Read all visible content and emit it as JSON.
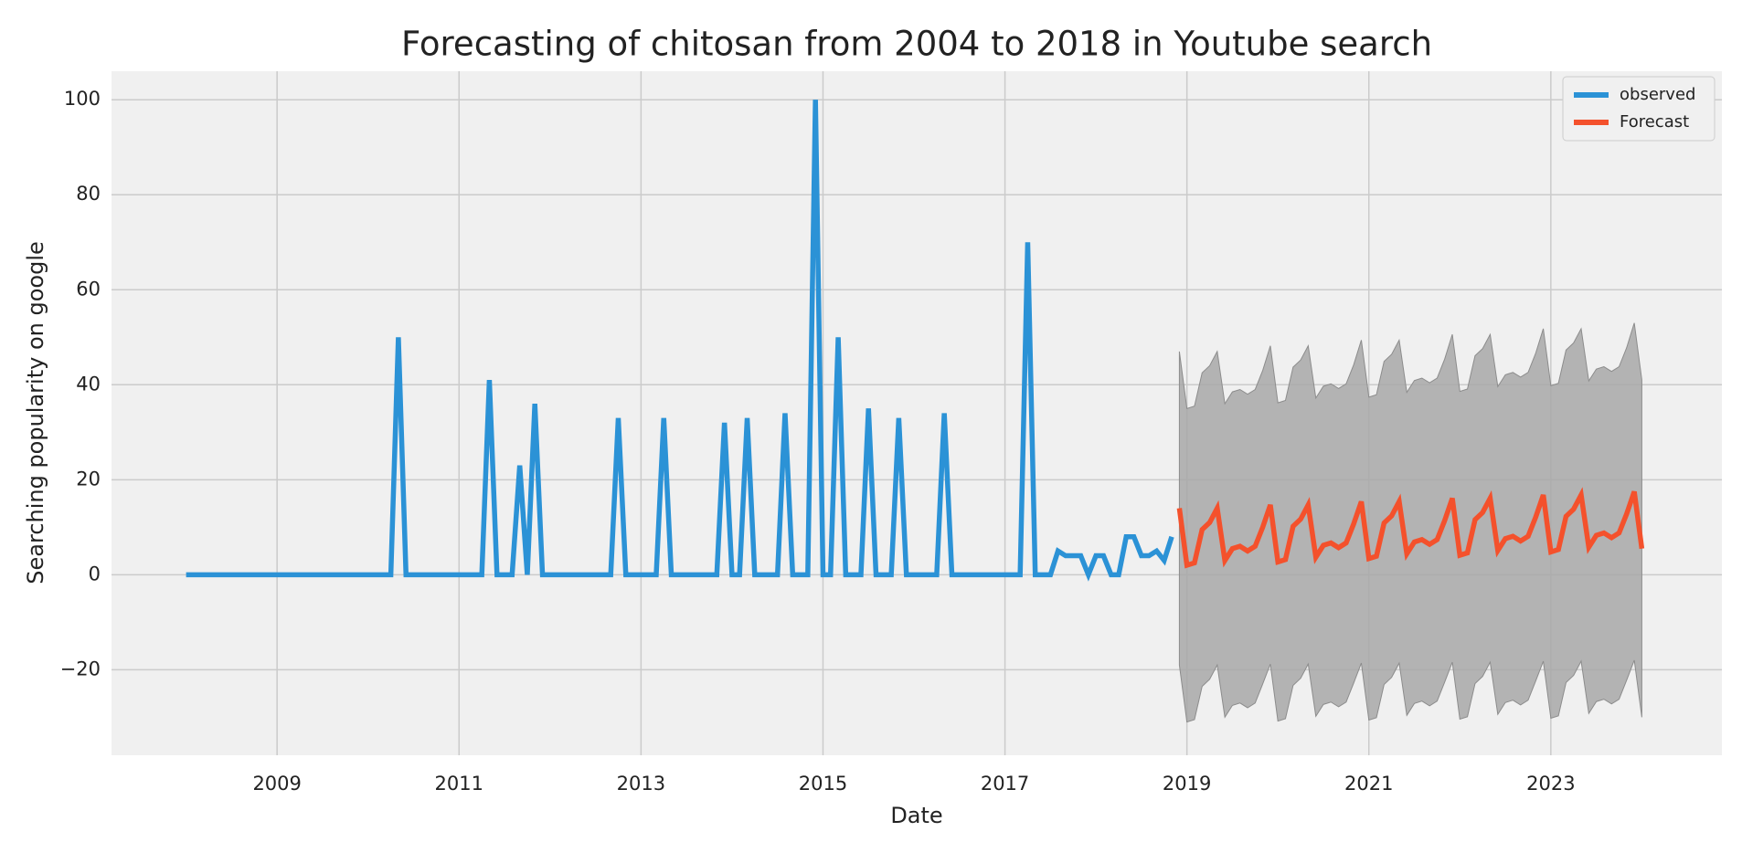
{
  "chart_data": {
    "type": "line",
    "title": "Forecasting of chitosan from 2004 to 2018 in Youtube search",
    "x_label": "Date",
    "y_label": "Searching popularity on google",
    "xlim": [
      2007.18,
      2024.88
    ],
    "ylim": [
      -38,
      106
    ],
    "xticks": [
      2009,
      2011,
      2013,
      2015,
      2017,
      2019,
      2021,
      2023
    ],
    "yticks": [
      {
        "value": -20,
        "label": "−20"
      },
      0,
      20,
      40,
      60,
      80,
      100
    ],
    "grid": true,
    "legend": "upper right",
    "series": [
      {
        "name": "observed",
        "color": "#2b92d6",
        "x": [
          2008.0,
          2010.25,
          2010.333,
          2010.417,
          2011.25,
          2011.333,
          2011.417,
          2011.583,
          2011.667,
          2011.75,
          2011.833,
          2011.917,
          2012.667,
          2012.75,
          2012.833,
          2013.167,
          2013.25,
          2013.333,
          2013.833,
          2013.917,
          2014.0,
          2014.083,
          2014.167,
          2014.25,
          2014.5,
          2014.583,
          2014.667,
          2014.833,
          2014.917,
          2015.0,
          2015.083,
          2015.167,
          2015.25,
          2015.417,
          2015.5,
          2015.583,
          2015.75,
          2015.833,
          2015.917,
          2016.25,
          2016.333,
          2016.417,
          2017.167,
          2017.25,
          2017.333,
          2017.417,
          2017.5,
          2017.583,
          2017.667,
          2017.75,
          2017.833,
          2017.917,
          2018.0,
          2018.083,
          2018.167,
          2018.25,
          2018.333,
          2018.417,
          2018.5,
          2018.583,
          2018.667,
          2018.75,
          2018.833
        ],
        "values": [
          0,
          0,
          50,
          0,
          0,
          41,
          0,
          0,
          23,
          0,
          36,
          0,
          0,
          33,
          0,
          0,
          33,
          0,
          0,
          32,
          0,
          0,
          33,
          0,
          0,
          34,
          0,
          0,
          100,
          0,
          0,
          50,
          0,
          0,
          35,
          0,
          0,
          33,
          0,
          0,
          34,
          0,
          0,
          70,
          0,
          0,
          0,
          5,
          4,
          4,
          4,
          0,
          4,
          4,
          0,
          0,
          8,
          8,
          4,
          4,
          5,
          3,
          8
        ]
      },
      {
        "name": "Forecast",
        "color": "#f4512c",
        "band_color": "#a8a8a8",
        "x": [
          2018.917,
          2019.0,
          2019.083,
          2019.167,
          2019.25,
          2019.333,
          2019.417,
          2019.5,
          2019.583,
          2019.667,
          2019.75,
          2019.833,
          2019.917,
          2020.0,
          2020.083,
          2020.167,
          2020.25,
          2020.333,
          2020.417,
          2020.5,
          2020.583,
          2020.667,
          2020.75,
          2020.833,
          2020.917,
          2021.0,
          2021.083,
          2021.167,
          2021.25,
          2021.333,
          2021.417,
          2021.5,
          2021.583,
          2021.667,
          2021.75,
          2021.833,
          2021.917,
          2022.0,
          2022.083,
          2022.167,
          2022.25,
          2022.333,
          2022.417,
          2022.5,
          2022.583,
          2022.667,
          2022.75,
          2022.833,
          2022.917,
          2023.0,
          2023.083,
          2023.167,
          2023.25,
          2023.333,
          2023.417,
          2023.5,
          2023.583,
          2023.667,
          2023.75,
          2023.833,
          2023.917,
          2024.0
        ],
        "values": [
          14,
          2,
          2.5,
          9.5,
          11,
          14,
          3,
          5.5,
          6,
          5,
          6,
          10,
          14.7,
          2.7,
          3.2,
          10.2,
          11.7,
          14.7,
          3.7,
          6.2,
          6.7,
          5.7,
          6.7,
          10.7,
          15.4,
          3.4,
          3.9,
          10.9,
          12.4,
          15.4,
          4.4,
          6.9,
          7.4,
          6.4,
          7.4,
          11.4,
          16.1,
          4.1,
          4.6,
          11.6,
          13.1,
          16.1,
          5.1,
          7.6,
          8.1,
          7.1,
          8.1,
          12.1,
          16.8,
          4.8,
          5.3,
          12.3,
          13.8,
          16.8,
          5.8,
          8.3,
          8.8,
          7.8,
          8.8,
          12.8,
          17.5,
          5.5
        ],
        "lower": [
          -19,
          -31,
          -30.5,
          -23.5,
          -22,
          -19,
          -30,
          -27.5,
          -27,
          -28,
          -27,
          -23,
          -18.8,
          -30.8,
          -30.3,
          -23.3,
          -21.8,
          -18.8,
          -29.8,
          -27.3,
          -26.8,
          -27.8,
          -26.8,
          -22.8,
          -18.6,
          -30.6,
          -30.1,
          -23.1,
          -21.6,
          -18.6,
          -29.6,
          -27.1,
          -26.6,
          -27.6,
          -26.6,
          -22.6,
          -18.4,
          -30.4,
          -29.9,
          -22.9,
          -21.4,
          -18.4,
          -29.4,
          -26.9,
          -26.4,
          -27.4,
          -26.4,
          -22.4,
          -18.2,
          -30.2,
          -29.7,
          -22.7,
          -21.2,
          -18.2,
          -29.2,
          -26.7,
          -26.2,
          -27.2,
          -26.2,
          -22.2,
          -18,
          -30
        ],
        "upper": [
          47,
          35,
          35.5,
          42.5,
          44,
          47,
          36,
          38.5,
          39,
          38,
          39,
          43,
          48.2,
          36.2,
          36.7,
          43.7,
          45.2,
          48.2,
          37.2,
          39.7,
          40.2,
          39.2,
          40.2,
          44.2,
          49.4,
          37.4,
          37.9,
          44.9,
          46.4,
          49.4,
          38.4,
          40.9,
          41.4,
          40.4,
          41.4,
          45.4,
          50.6,
          38.6,
          39.1,
          46.1,
          47.6,
          50.6,
          39.6,
          42.1,
          42.6,
          41.6,
          42.6,
          46.6,
          51.8,
          39.8,
          40.3,
          47.3,
          48.8,
          51.8,
          40.8,
          43.3,
          43.8,
          42.8,
          43.8,
          47.8,
          53,
          41
        ]
      }
    ]
  }
}
